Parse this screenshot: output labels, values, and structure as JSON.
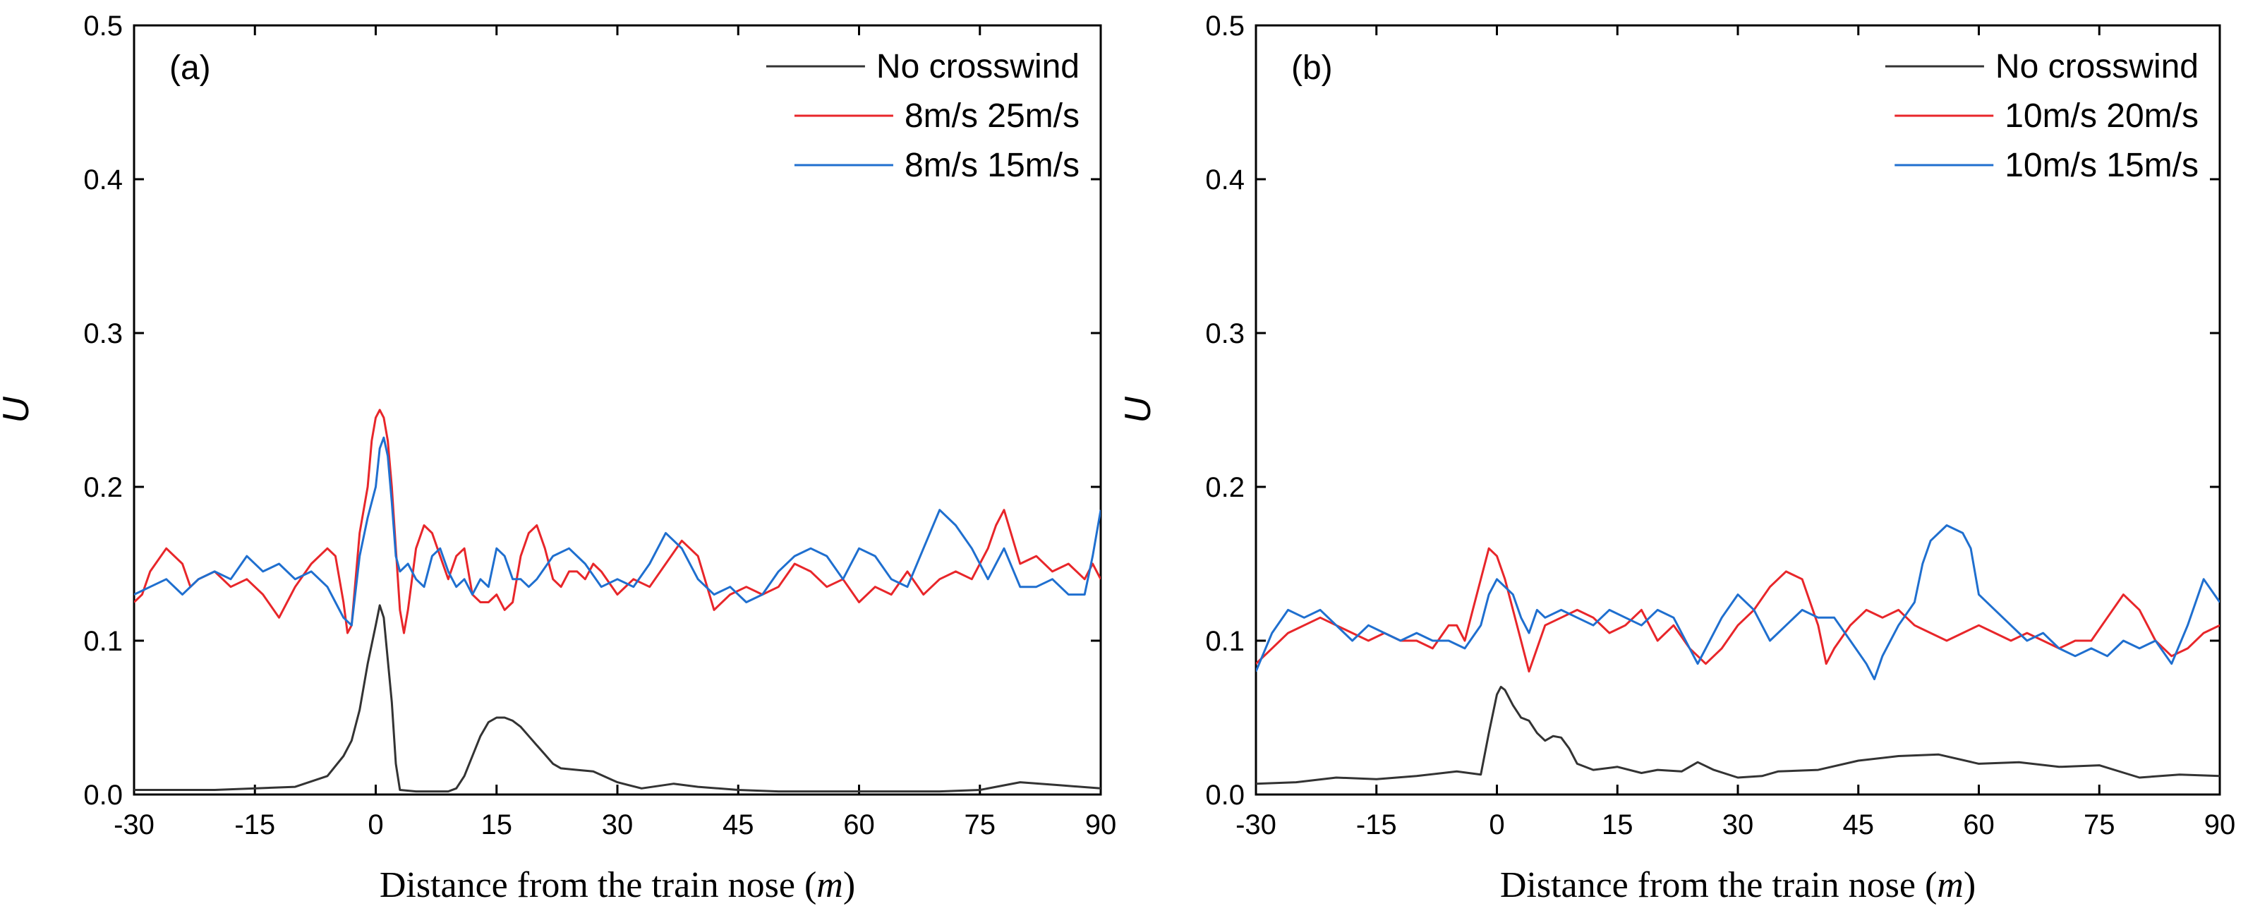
{
  "chart_data": [
    {
      "type": "line",
      "panel_label": "(a)",
      "xlabel_prefix": "Distance from the train nose (",
      "xlabel_unit": "m",
      "xlabel_suffix": ")",
      "ylabel": "U",
      "xlim": [
        -30,
        90
      ],
      "ylim": [
        0,
        0.5
      ],
      "xticks": [
        -30,
        -15,
        0,
        15,
        30,
        45,
        60,
        75,
        90
      ],
      "xtick_labels": [
        "-30",
        "-15",
        "0",
        "15",
        "30",
        "45",
        "60",
        "75",
        "90"
      ],
      "yticks": [
        0.0,
        0.1,
        0.2,
        0.3,
        0.4,
        0.5
      ],
      "ytick_labels": [
        "0.0",
        "0.1",
        "0.2",
        "0.3",
        "0.4",
        "0.5"
      ],
      "legend_position": "top-right",
      "series": [
        {
          "name": "No crosswind",
          "color": "#333333",
          "x": [
            -30,
            -20,
            -10,
            -6,
            -4,
            -3,
            -2,
            -1,
            0,
            0.5,
            1,
            2,
            2.5,
            3,
            5,
            7,
            9,
            10,
            11,
            12,
            13,
            14,
            15,
            16,
            17,
            18,
            19,
            20,
            21,
            22,
            23,
            25,
            27,
            30,
            33,
            37,
            40,
            45,
            50,
            60,
            70,
            75,
            80,
            85,
            90
          ],
          "values": [
            0.003,
            0.003,
            0.005,
            0.012,
            0.025,
            0.035,
            0.055,
            0.085,
            0.11,
            0.123,
            0.115,
            0.06,
            0.02,
            0.003,
            0.002,
            0.002,
            0.002,
            0.004,
            0.012,
            0.025,
            0.038,
            0.047,
            0.05,
            0.05,
            0.048,
            0.044,
            0.038,
            0.032,
            0.026,
            0.02,
            0.017,
            0.016,
            0.015,
            0.008,
            0.004,
            0.007,
            0.005,
            0.003,
            0.002,
            0.002,
            0.002,
            0.003,
            0.008,
            0.006,
            0.004
          ]
        },
        {
          "name": "8m/s 25m/s",
          "color": "#e8262a",
          "x": [
            -30,
            -29,
            -28,
            -26,
            -24,
            -23,
            -22,
            -20,
            -18,
            -16,
            -14,
            -12,
            -10,
            -8,
            -6,
            -5,
            -4,
            -3.5,
            -3,
            -2,
            -1,
            -0.5,
            0,
            0.5,
            1,
            1.5,
            2,
            2.5,
            3,
            3.5,
            4,
            5,
            6,
            7,
            8,
            9,
            10,
            11,
            12,
            13,
            14,
            15,
            16,
            17,
            18,
            19,
            20,
            21,
            22,
            23,
            24,
            25,
            26,
            27,
            28,
            30,
            32,
            34,
            36,
            38,
            40,
            42,
            44,
            46,
            48,
            50,
            52,
            54,
            56,
            58,
            60,
            62,
            64,
            66,
            68,
            70,
            72,
            74,
            76,
            77,
            78,
            80,
            82,
            84,
            86,
            88,
            89,
            90
          ],
          "values": [
            0.125,
            0.13,
            0.145,
            0.16,
            0.15,
            0.135,
            0.14,
            0.145,
            0.135,
            0.14,
            0.13,
            0.115,
            0.135,
            0.15,
            0.16,
            0.155,
            0.125,
            0.105,
            0.11,
            0.17,
            0.2,
            0.23,
            0.245,
            0.25,
            0.245,
            0.23,
            0.2,
            0.16,
            0.12,
            0.105,
            0.12,
            0.16,
            0.175,
            0.17,
            0.155,
            0.14,
            0.155,
            0.16,
            0.13,
            0.125,
            0.125,
            0.13,
            0.12,
            0.125,
            0.155,
            0.17,
            0.175,
            0.16,
            0.14,
            0.135,
            0.145,
            0.145,
            0.14,
            0.15,
            0.145,
            0.13,
            0.14,
            0.135,
            0.15,
            0.165,
            0.155,
            0.12,
            0.13,
            0.135,
            0.13,
            0.135,
            0.15,
            0.145,
            0.135,
            0.14,
            0.125,
            0.135,
            0.13,
            0.145,
            0.13,
            0.14,
            0.145,
            0.14,
            0.16,
            0.175,
            0.185,
            0.15,
            0.155,
            0.145,
            0.15,
            0.14,
            0.15,
            0.14
          ]
        },
        {
          "name": "8m/s 15m/s",
          "color": "#1f6fcf",
          "x": [
            -30,
            -28,
            -26,
            -24,
            -22,
            -20,
            -18,
            -16,
            -14,
            -12,
            -10,
            -8,
            -6,
            -5,
            -4,
            -3,
            -2,
            -1,
            0,
            0.5,
            1,
            1.5,
            2,
            2.5,
            3,
            4,
            5,
            6,
            7,
            8,
            9,
            10,
            11,
            12,
            13,
            14,
            15,
            16,
            17,
            18,
            19,
            20,
            22,
            24,
            26,
            28,
            30,
            32,
            34,
            36,
            38,
            40,
            42,
            44,
            46,
            48,
            50,
            52,
            54,
            56,
            58,
            60,
            62,
            64,
            66,
            68,
            70,
            72,
            74,
            76,
            78,
            80,
            82,
            84,
            86,
            88,
            89,
            90
          ],
          "values": [
            0.13,
            0.135,
            0.14,
            0.13,
            0.14,
            0.145,
            0.14,
            0.155,
            0.145,
            0.15,
            0.14,
            0.145,
            0.135,
            0.125,
            0.115,
            0.11,
            0.155,
            0.18,
            0.2,
            0.225,
            0.232,
            0.22,
            0.19,
            0.155,
            0.145,
            0.15,
            0.14,
            0.135,
            0.155,
            0.16,
            0.145,
            0.135,
            0.14,
            0.13,
            0.14,
            0.135,
            0.16,
            0.155,
            0.14,
            0.14,
            0.135,
            0.14,
            0.155,
            0.16,
            0.15,
            0.135,
            0.14,
            0.135,
            0.15,
            0.17,
            0.16,
            0.14,
            0.13,
            0.135,
            0.125,
            0.13,
            0.145,
            0.155,
            0.16,
            0.155,
            0.14,
            0.16,
            0.155,
            0.14,
            0.135,
            0.16,
            0.185,
            0.175,
            0.16,
            0.14,
            0.16,
            0.135,
            0.135,
            0.14,
            0.13,
            0.13,
            0.155,
            0.185
          ]
        }
      ]
    },
    {
      "type": "line",
      "panel_label": "(b)",
      "xlabel_prefix": "Distance from the train nose (",
      "xlabel_unit": "m",
      "xlabel_suffix": ")",
      "ylabel": "U",
      "xlim": [
        -30,
        90
      ],
      "ylim": [
        0,
        0.5
      ],
      "xticks": [
        -30,
        -15,
        0,
        15,
        30,
        45,
        60,
        75,
        90
      ],
      "xtick_labels": [
        "-30",
        "-15",
        "0",
        "15",
        "30",
        "45",
        "60",
        "75",
        "90"
      ],
      "yticks": [
        0.0,
        0.1,
        0.2,
        0.3,
        0.4,
        0.5
      ],
      "ytick_labels": [
        "0.0",
        "0.1",
        "0.2",
        "0.3",
        "0.4",
        "0.5"
      ],
      "legend_position": "top-right",
      "series": [
        {
          "name": "No crosswind",
          "color": "#333333",
          "x": [
            -30,
            -25,
            -20,
            -15,
            -10,
            -5,
            -2,
            -1,
            0,
            0.5,
            1,
            2,
            3,
            4,
            5,
            6,
            7,
            8,
            9,
            10,
            12,
            15,
            18,
            20,
            23,
            25,
            27,
            30,
            33,
            35,
            40,
            45,
            50,
            55,
            60,
            65,
            70,
            75,
            80,
            85,
            90
          ],
          "values": [
            0.007,
            0.008,
            0.011,
            0.01,
            0.012,
            0.015,
            0.013,
            0.04,
            0.065,
            0.07,
            0.068,
            0.058,
            0.05,
            0.048,
            0.04,
            0.035,
            0.038,
            0.037,
            0.03,
            0.02,
            0.016,
            0.018,
            0.014,
            0.016,
            0.015,
            0.021,
            0.016,
            0.011,
            0.012,
            0.015,
            0.016,
            0.022,
            0.025,
            0.026,
            0.02,
            0.021,
            0.018,
            0.019,
            0.011,
            0.013,
            0.012
          ]
        },
        {
          "name": "10m/s 20m/s",
          "color": "#e8262a",
          "x": [
            -30,
            -28,
            -26,
            -24,
            -22,
            -20,
            -18,
            -16,
            -14,
            -12,
            -10,
            -8,
            -6,
            -5,
            -4,
            -3,
            -2,
            -1,
            0,
            1,
            2,
            3,
            4,
            5,
            6,
            8,
            10,
            12,
            14,
            16,
            18,
            20,
            22,
            24,
            26,
            28,
            30,
            32,
            34,
            36,
            38,
            40,
            41,
            42,
            44,
            46,
            48,
            50,
            52,
            54,
            56,
            58,
            60,
            62,
            64,
            66,
            68,
            70,
            72,
            74,
            76,
            78,
            80,
            82,
            84,
            86,
            88,
            90
          ],
          "values": [
            0.085,
            0.095,
            0.105,
            0.11,
            0.115,
            0.11,
            0.105,
            0.1,
            0.105,
            0.1,
            0.1,
            0.095,
            0.11,
            0.11,
            0.1,
            0.12,
            0.14,
            0.16,
            0.155,
            0.14,
            0.12,
            0.1,
            0.08,
            0.095,
            0.11,
            0.115,
            0.12,
            0.115,
            0.105,
            0.11,
            0.12,
            0.1,
            0.11,
            0.095,
            0.085,
            0.095,
            0.11,
            0.12,
            0.135,
            0.145,
            0.14,
            0.11,
            0.085,
            0.095,
            0.11,
            0.12,
            0.115,
            0.12,
            0.11,
            0.105,
            0.1,
            0.105,
            0.11,
            0.105,
            0.1,
            0.105,
            0.1,
            0.095,
            0.1,
            0.1,
            0.115,
            0.13,
            0.12,
            0.1,
            0.09,
            0.095,
            0.105,
            0.11
          ]
        },
        {
          "name": "10m/s 15m/s",
          "color": "#1f6fcf",
          "x": [
            -30,
            -28,
            -26,
            -24,
            -22,
            -20,
            -18,
            -16,
            -14,
            -12,
            -10,
            -8,
            -6,
            -4,
            -2,
            -1,
            0,
            1,
            2,
            3,
            4,
            5,
            6,
            8,
            10,
            12,
            14,
            16,
            18,
            20,
            22,
            24,
            25,
            26,
            28,
            30,
            32,
            34,
            36,
            38,
            40,
            42,
            44,
            46,
            47,
            48,
            50,
            52,
            53,
            54,
            56,
            58,
            59,
            60,
            62,
            64,
            66,
            68,
            70,
            72,
            74,
            76,
            78,
            80,
            82,
            84,
            86,
            88,
            90
          ],
          "values": [
            0.08,
            0.105,
            0.12,
            0.115,
            0.12,
            0.11,
            0.1,
            0.11,
            0.105,
            0.1,
            0.105,
            0.1,
            0.1,
            0.095,
            0.11,
            0.13,
            0.14,
            0.135,
            0.13,
            0.115,
            0.105,
            0.12,
            0.115,
            0.12,
            0.115,
            0.11,
            0.12,
            0.115,
            0.11,
            0.12,
            0.115,
            0.095,
            0.085,
            0.095,
            0.115,
            0.13,
            0.12,
            0.1,
            0.11,
            0.12,
            0.115,
            0.115,
            0.1,
            0.085,
            0.075,
            0.09,
            0.11,
            0.125,
            0.15,
            0.165,
            0.175,
            0.17,
            0.16,
            0.13,
            0.12,
            0.11,
            0.1,
            0.105,
            0.095,
            0.09,
            0.095,
            0.09,
            0.1,
            0.095,
            0.1,
            0.085,
            0.11,
            0.14,
            0.125
          ]
        }
      ]
    }
  ]
}
